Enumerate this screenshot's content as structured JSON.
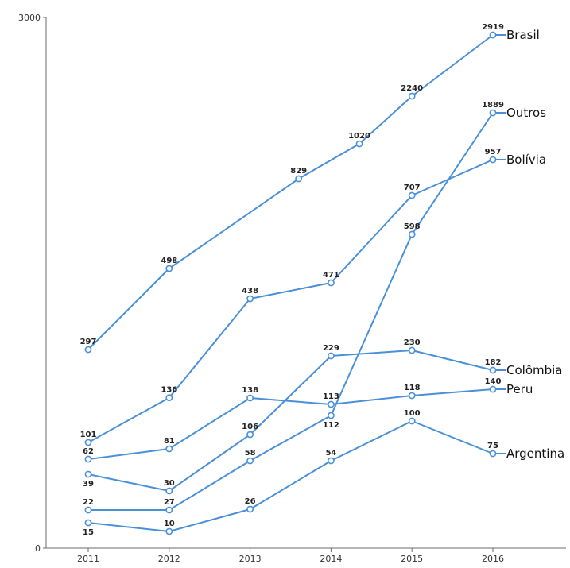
{
  "chart_data": {
    "type": "line",
    "title": "",
    "xlabel": "",
    "ylabel": "",
    "categories": [
      "2011",
      "2012",
      "2013",
      "2014",
      "2015",
      "2016"
    ],
    "y_tick_labels": [
      "0",
      "3000"
    ],
    "grid": false,
    "legend": "inline labels at line ends",
    "color": "#4a90d9",
    "series": [
      {
        "name": "Brasil",
        "x": [
          2011,
          2012,
          2013.6,
          2014.35,
          2015,
          2016
        ],
        "values": [
          297,
          498,
          829,
          1020,
          2240,
          2919
        ],
        "labels": [
          "297",
          "498",
          "829",
          "1020",
          "2240",
          "2919"
        ]
      },
      {
        "name": "Outros",
        "x": [
          2011,
          2012,
          2013,
          2014,
          2015,
          2016
        ],
        "values": [
          22,
          27,
          58,
          112,
          598,
          1889
        ],
        "labels": [
          "22",
          "27",
          "58",
          "112",
          "598",
          "1889"
        ]
      },
      {
        "name": "Bolívia",
        "x": [
          2011,
          2012,
          2013,
          2014,
          2015,
          2016
        ],
        "values": [
          101,
          136,
          438,
          471,
          707,
          957
        ],
        "labels": [
          "101",
          "136",
          "438",
          "471",
          "707",
          "957"
        ]
      },
      {
        "name": "Colômbia",
        "x": [
          2011,
          2012,
          2013,
          2014,
          2015,
          2016
        ],
        "values": [
          39,
          30,
          106,
          229,
          230,
          182
        ],
        "labels": [
          "39",
          "30",
          "106",
          "229",
          "230",
          "182"
        ]
      },
      {
        "name": "Peru",
        "x": [
          2011,
          2012,
          2013,
          2014,
          2015,
          2016
        ],
        "values": [
          62,
          81,
          138,
          113,
          118,
          140
        ],
        "labels": [
          "62",
          "81",
          "138",
          "113",
          "118",
          "140"
        ]
      },
      {
        "name": "Argentina",
        "x": [
          2011,
          2012,
          2013,
          2014,
          2015,
          2016
        ],
        "values": [
          15,
          10,
          26,
          54,
          100,
          75
        ],
        "labels": [
          "15",
          "10",
          "26",
          "54",
          "100",
          "75"
        ]
      }
    ]
  }
}
